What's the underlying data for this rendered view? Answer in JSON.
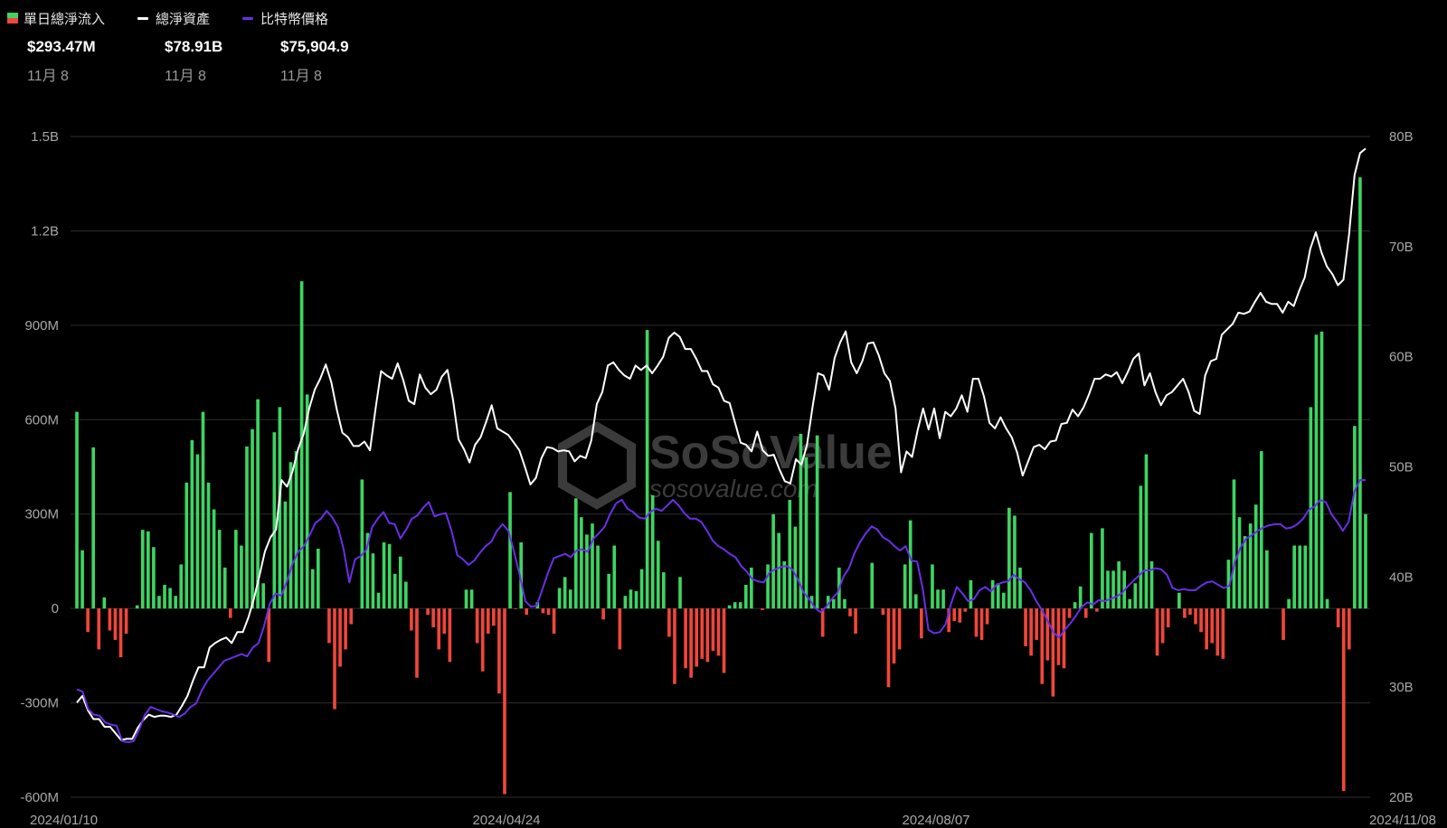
{
  "legend": {
    "inflow_label": "單日總淨流入",
    "assets_label": "總淨資產",
    "price_label": "比特幣價格"
  },
  "summary": {
    "inflow_value": "$293.47M",
    "assets_value": "$78.91B",
    "price_value": "$75,904.9",
    "date": "11月 8"
  },
  "colors": {
    "positive": "#3ed462",
    "negative": "#f0463b",
    "assets_line": "#ffffff",
    "price_line": "#6a2fe6",
    "grid": "#2e2e2e",
    "watermark": "#3b3b3b"
  },
  "watermark": {
    "brand": "SoSoValue",
    "url": "sosovalue.com"
  },
  "chart_data": {
    "type": "bar",
    "x_ticks": [
      "2024/01/10",
      "2024/04/24",
      "2024/08/07",
      "2024/11/08"
    ],
    "y_left": {
      "ticks": [
        "1.5B",
        "1.2B",
        "900M",
        "600M",
        "300M",
        "0",
        "-300M",
        "-600M"
      ],
      "range": [
        -600,
        1500
      ],
      "unit": "M USD"
    },
    "y_right": {
      "ticks": [
        "80B",
        "70B",
        "60B",
        "50B",
        "40B",
        "30B",
        "20B"
      ],
      "range": [
        20,
        80
      ],
      "unit": "B USD"
    },
    "grid": true,
    "legend_position": "top-left",
    "series": [
      {
        "name": "單日總淨流入",
        "kind": "bar",
        "values": [
          625,
          185,
          -75,
          512,
          -130,
          35,
          -70,
          -100,
          -155,
          -80,
          0,
          10,
          250,
          245,
          195,
          40,
          75,
          65,
          40,
          140,
          400,
          535,
          490,
          625,
          400,
          315,
          250,
          130,
          -30,
          250,
          200,
          515,
          570,
          665,
          80,
          -170,
          560,
          640,
          340,
          465,
          500,
          1040,
          680,
          125,
          190,
          0,
          -110,
          -320,
          -185,
          -130,
          -50,
          0,
          410,
          240,
          175,
          50,
          210,
          205,
          110,
          165,
          85,
          -70,
          -220,
          0,
          -20,
          -60,
          -130,
          -80,
          -170,
          0,
          0,
          60,
          60,
          -110,
          -200,
          -80,
          -55,
          -270,
          -590,
          370,
          -2,
          210,
          -20,
          0,
          20,
          -15,
          -20,
          -80,
          65,
          100,
          60,
          350,
          290,
          235,
          270,
          200,
          -35,
          110,
          200,
          -130,
          40,
          60,
          55,
          125,
          885,
          360,
          215,
          115,
          -90,
          -240,
          100,
          -190,
          -220,
          -185,
          -160,
          -170,
          -135,
          -150,
          -205,
          10,
          20,
          20,
          75,
          130,
          0,
          -5,
          140,
          300,
          240,
          150,
          345,
          260,
          555,
          480,
          40,
          550,
          -90,
          40,
          30,
          130,
          30,
          -25,
          -80,
          0,
          0,
          145,
          0,
          -20,
          -250,
          -175,
          -130,
          140,
          280,
          45,
          -95,
          0,
          140,
          60,
          60,
          -75,
          -40,
          -45,
          -10,
          90,
          -90,
          -100,
          -50,
          90,
          80,
          50,
          320,
          295,
          130,
          -120,
          -150,
          -100,
          -240,
          -165,
          -280,
          -180,
          -190,
          -30,
          20,
          70,
          -30,
          240,
          -10,
          255,
          120,
          120,
          150,
          120,
          30,
          80,
          390,
          490,
          150,
          -150,
          -110,
          -60,
          0,
          50,
          -30,
          -20,
          -50,
          -75,
          -130,
          -110,
          -150,
          -160,
          155,
          410,
          290,
          230,
          270,
          330,
          500,
          185,
          0,
          0,
          -100,
          30,
          200,
          200,
          200,
          640,
          870,
          880,
          30,
          0,
          -60,
          -580,
          -130,
          580,
          1370,
          300
        ]
      },
      {
        "name": "總淨資產",
        "kind": "line",
        "values": [
          28.6,
          29.2,
          27.9,
          27.1,
          27.1,
          26.4,
          26.4,
          25.8,
          25.2,
          25.3,
          25.3,
          26.3,
          27.0,
          27.5,
          27.3,
          27.4,
          27.4,
          27.3,
          27.5,
          28.3,
          29.2,
          30.6,
          31.8,
          31.8,
          33.6,
          34.0,
          34.3,
          34.5,
          34.0,
          35.0,
          35.0,
          36.3,
          38.0,
          40.1,
          42.3,
          43.6,
          44.3,
          48.8,
          48.2,
          49.6,
          51.6,
          53.0,
          55.3,
          57.0,
          58.0,
          59.3,
          57.7,
          55.2,
          53.1,
          52.7,
          51.9,
          51.9,
          52.3,
          51.5,
          55.3,
          58.7,
          58.3,
          58.0,
          59.4,
          57.9,
          56.0,
          55.7,
          58.4,
          57.2,
          56.6,
          57.0,
          58.2,
          58.8,
          56.1,
          52.5,
          51.6,
          50.4,
          52.0,
          52.7,
          54.1,
          55.6,
          53.5,
          53.2,
          52.9,
          52.2,
          51.5,
          50.0,
          48.4,
          49.0,
          50.8,
          51.8,
          51.7,
          51.4,
          51.5,
          51.4,
          50.5,
          51.0,
          50.8,
          52.4,
          55.7,
          56.8,
          59.2,
          59.5,
          58.8,
          58.3,
          58.0,
          59.2,
          58.8,
          59.2,
          58.5,
          59.2,
          60.0,
          61.7,
          62.2,
          61.8,
          60.7,
          60.7,
          59.8,
          58.7,
          58.7,
          57.5,
          57.2,
          56.0,
          55.8,
          54.0,
          52.2,
          52.0,
          51.4,
          53.2,
          51.5,
          51.0,
          51.1,
          49.8,
          48.7,
          48.5,
          50.7,
          50.2,
          52.0,
          55.4,
          58.5,
          58.3,
          57.0,
          59.9,
          61.3,
          62.3,
          59.5,
          58.5,
          59.6,
          61.2,
          61.3,
          60.1,
          58.5,
          57.8,
          55.3,
          49.5,
          51.4,
          50.9,
          53.3,
          55.3,
          53.4,
          55.3,
          52.6,
          55.0,
          54.6,
          55.3,
          56.5,
          55.0,
          58.0,
          58.0,
          56.4,
          54.0,
          53.5,
          54.5,
          53.5,
          52.7,
          51.3,
          49.2,
          50.5,
          51.8,
          52.0,
          51.6,
          52.3,
          52.4,
          53.9,
          54.0,
          55.2,
          54.6,
          55.4,
          56.6,
          58.0,
          58.0,
          58.4,
          58.2,
          58.6,
          57.6,
          58.6,
          59.8,
          60.3,
          57.4,
          58.5,
          56.8,
          55.6,
          56.5,
          56.8,
          57.4,
          58.0,
          56.8,
          55.1,
          54.8,
          58.3,
          59.6,
          59.8,
          62.0,
          62.5,
          63.0,
          64.0,
          63.9,
          64.1,
          65.0,
          65.8,
          65.0,
          64.8,
          64.8,
          64.0,
          65.0,
          64.6,
          66.0,
          67.2,
          69.8,
          71.3,
          69.5,
          68.2,
          67.5,
          66.5,
          67.0,
          71.1,
          76.5,
          78.5,
          78.9
        ]
      },
      {
        "name": "比特幣價格",
        "kind": "line",
        "values": [
          29.8,
          29.6,
          28.0,
          27.5,
          27.4,
          26.8,
          26.6,
          26.5,
          25.1,
          25.0,
          25.1,
          26.2,
          27.5,
          28.2,
          28.0,
          27.8,
          27.7,
          27.5,
          27.3,
          27.6,
          28.2,
          28.5,
          29.7,
          30.6,
          31.2,
          31.8,
          32.4,
          32.6,
          32.8,
          33.0,
          32.8,
          33.6,
          34.0,
          35.6,
          37.6,
          38.5,
          38.3,
          39.6,
          41.2,
          42.3,
          42.8,
          43.8,
          44.9,
          45.3,
          46.0,
          45.4,
          44.5,
          42.5,
          39.5,
          41.6,
          41.9,
          42.5,
          44.5,
          45.3,
          45.9,
          44.9,
          44.8,
          43.5,
          44.3,
          45.3,
          45.6,
          46.3,
          46.8,
          45.5,
          45.7,
          45.8,
          44.2,
          42.0,
          41.6,
          41.1,
          41.5,
          42.2,
          42.8,
          43.2,
          44.2,
          44.8,
          44.2,
          42.3,
          40.2,
          37.8,
          37.3,
          37.4,
          38.9,
          40.4,
          41.7,
          41.9,
          42.1,
          41.8,
          42.4,
          42.5,
          42.3,
          43.5,
          44.0,
          44.6,
          45.8,
          46.7,
          47.0,
          46.2,
          45.9,
          45.4,
          45.3,
          45.9,
          46.2,
          46.0,
          46.5,
          47.0,
          46.5,
          45.8,
          45.3,
          45.3,
          45.0,
          44.2,
          43.3,
          42.8,
          42.5,
          42.1,
          41.8,
          41.0,
          40.5,
          39.8,
          39.6,
          39.5,
          40.4,
          40.7,
          40.9,
          41.0,
          40.7,
          39.8,
          38.6,
          38.0,
          37.2,
          36.8,
          37.3,
          38.0,
          38.6,
          40.0,
          40.8,
          42.2,
          43.2,
          44.0,
          44.6,
          44.3,
          43.6,
          43.3,
          42.8,
          42.4,
          42.8,
          41.5,
          41.4,
          38.9,
          35.2,
          34.9,
          35.0,
          35.7,
          37.6,
          39.1,
          38.5,
          37.8,
          38.0,
          38.8,
          39.1,
          38.7,
          39.3,
          39.5,
          39.6,
          40.2,
          39.8,
          39.5,
          38.8,
          37.8,
          37.0,
          36.0,
          35.0,
          34.5,
          35.2,
          35.8,
          36.5,
          37.3,
          37.7,
          37.5,
          37.9,
          37.8,
          38.0,
          38.2,
          38.5,
          39.1,
          39.6,
          40.1,
          40.6,
          40.6,
          40.8,
          40.7,
          40.2,
          39.0,
          38.8,
          38.9,
          38.8,
          38.8,
          39.2,
          39.5,
          39.6,
          39.3,
          39.0,
          39.2,
          41.4,
          42.7,
          43.5,
          43.8,
          44.2,
          44.5,
          44.7,
          44.8,
          44.8,
          44.4,
          44.5,
          44.8,
          45.3,
          46.1,
          46.4,
          47.0,
          46.8,
          45.7,
          45.0,
          44.2,
          45.0,
          47.7,
          48.8,
          48.8
        ]
      }
    ]
  }
}
